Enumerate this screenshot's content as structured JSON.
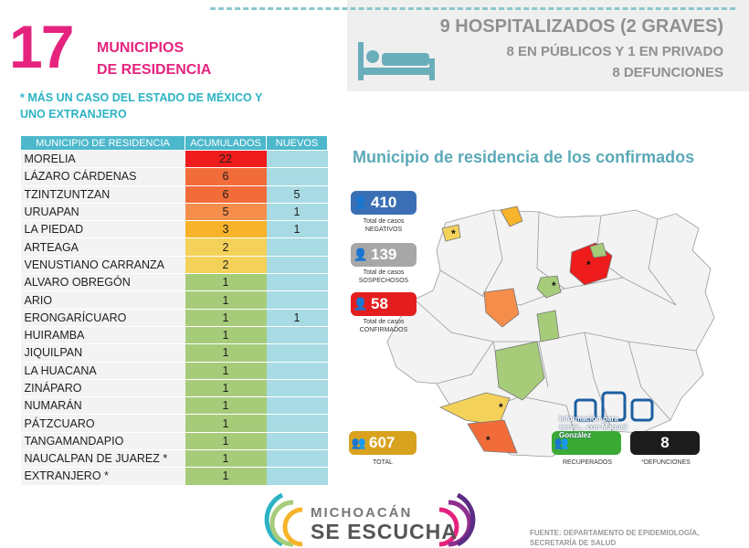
{
  "header": {
    "count": "17",
    "title_line1": "MUNICIPIOS",
    "title_line2": "DE RESIDENCIA",
    "note": "* MÁS UN CASO DEL ESTADO DE MÉXICO Y UNO EXTRANJERO"
  },
  "hospital": {
    "line1": "9 HOSPITALIZADOS (2 GRAVES)",
    "line2": "8  EN PÚBLICOS Y 1 EN PRIVADO",
    "line3": "8 DEFUNCIONES"
  },
  "table": {
    "headers": [
      "MUNICIPIO DE RESIDENCIA",
      "ACUMULADOS",
      "NUEVOS"
    ],
    "rows": [
      {
        "name": "MORELIA",
        "acc": "22",
        "new": "",
        "color": "#ee1c1c"
      },
      {
        "name": "LÁZARO CÁRDENAS",
        "acc": "6",
        "new": "",
        "color": "#f26c3a"
      },
      {
        "name": "TZINTZUNTZAN",
        "acc": "6",
        "new": "5",
        "color": "#f26c3a"
      },
      {
        "name": "URUAPAN",
        "acc": "5",
        "new": "1",
        "color": "#f58e4a"
      },
      {
        "name": "LA PIEDAD",
        "acc": "3",
        "new": "1",
        "color": "#f7b32a"
      },
      {
        "name": "ARTEAGA",
        "acc": "2",
        "new": "",
        "color": "#f4d25a"
      },
      {
        "name": "VENUSTIANO CARRANZA",
        "acc": "2",
        "new": "",
        "color": "#f4d25a"
      },
      {
        "name": "ALVARO OBREGÓN",
        "acc": "1",
        "new": "",
        "color": "#a6cc7a"
      },
      {
        "name": "ARIO",
        "acc": "1",
        "new": "",
        "color": "#a6cc7a"
      },
      {
        "name": "ERONGARÍCUARO",
        "acc": "1",
        "new": "1",
        "color": "#a6cc7a"
      },
      {
        "name": "HUIRAMBA",
        "acc": "1",
        "new": "",
        "color": "#a6cc7a"
      },
      {
        "name": "JIQUILPAN",
        "acc": "1",
        "new": "",
        "color": "#a6cc7a"
      },
      {
        "name": "LA HUACANA",
        "acc": "1",
        "new": "",
        "color": "#a6cc7a"
      },
      {
        "name": "ZINÁPARO",
        "acc": "1",
        "new": "",
        "color": "#a6cc7a"
      },
      {
        "name": "NUMARÁN",
        "acc": "1",
        "new": "",
        "color": "#a6cc7a"
      },
      {
        "name": "PÁTZCUARO",
        "acc": "1",
        "new": "",
        "color": "#a6cc7a"
      },
      {
        "name": "TANGAMANDAPIO",
        "acc": "1",
        "new": "",
        "color": "#a6cc7a"
      },
      {
        "name": "NAUCALPAN DE JUAREZ *",
        "acc": "1",
        "new": "",
        "color": "#a6cc7a"
      },
      {
        "name": "EXTRANJERO *",
        "acc": "1",
        "new": "",
        "color": "#a6cc7a"
      }
    ]
  },
  "map": {
    "title": "Municipio de residencia de los confirmados"
  },
  "stats": {
    "negativos_value": "410",
    "negativos_label1": "Total de casos",
    "negativos_label2": "NEGATIVOS",
    "sospechosos_value": "139",
    "sospechosos_label1": "Total de casos",
    "sospechosos_label2": "SOSPECHOSOS",
    "confirmados_value": "58",
    "confirmados_label1": "Total de casos",
    "confirmados_label2": "CONFIRMADOS",
    "total_value": "607",
    "total_label": "TOTAL",
    "recuperados_label": "RECUPERADOS",
    "defunciones_value": "8",
    "defunciones_label": "*DEFUNCIONES"
  },
  "watermark": {
    "line1": "Información para",
    "line2": "servir... con Manuel",
    "line3": "González"
  },
  "footer": {
    "logo_line1": "MICHOACÁN",
    "logo_line2": "SE ESCUCHA",
    "source_line1": "FUENTE: DEPARTAMENTO DE EPIDEMIOLOGÍA,",
    "source_line2": "SECRETARÍA DE SALUD"
  },
  "colors": {
    "magenta": "#e5237e",
    "teal": "#4db8cb",
    "negativos": "#3a6fb5",
    "sospechosos": "#a7a7a7",
    "confirmados": "#e41e1e",
    "total": "#d8a21f",
    "recuperados": "#3aaa35",
    "defunciones": "#1c1c1c"
  },
  "icons": [
    "bed-icon",
    "person-icon",
    "group-icon",
    "logo-arcs-icon"
  ]
}
